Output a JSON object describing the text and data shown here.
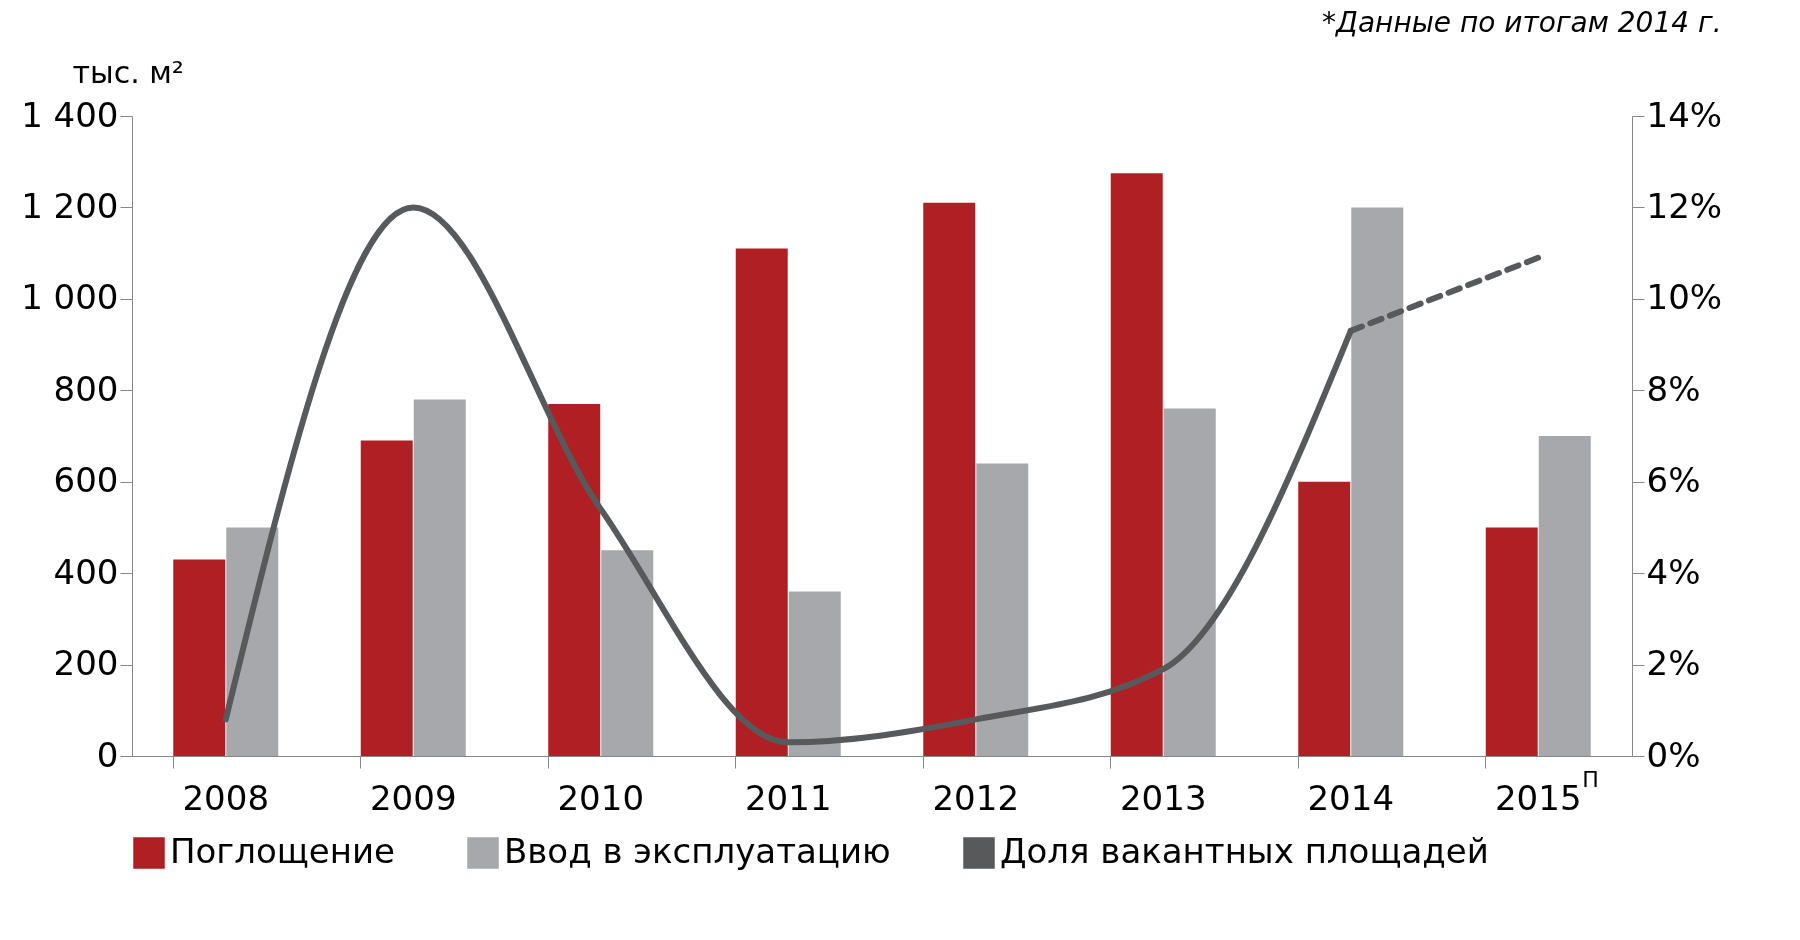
{
  "chart_data": {
    "type": "bar",
    "ylabel": "тыс. м²",
    "annotations": [
      "*Данные по итогам 2014 г."
    ],
    "categories": [
      "2008",
      "2009",
      "2010",
      "2011",
      "2012",
      "2013",
      "2014",
      "2015$^{П}$"
    ],
    "series": [
      {
        "name": "Поглощение",
        "color": "#b01f24",
        "values": [
          430,
          690,
          770,
          1110,
          1210,
          1275,
          600,
          500
        ]
      },
      {
        "name": "Ввод в эксплуатацию",
        "color": "#a7a8ab",
        "values": [
          500,
          780,
          450,
          360,
          640,
          760,
          1200,
          700
        ]
      },
      {
        "name": "Доля вакантных площадей",
        "type": "line",
        "axis": "y2",
        "color": "#58595b",
        "line_style": "solid",
        "values": [
          0.8,
          12,
          5.4,
          0.3,
          0.8,
          1.9,
          9.3,
          null
        ]
      },
      {
        "type": "line",
        "axis": "y2",
        "color": "#58595b",
        "line_style": "dashed",
        "values": [
          null,
          null,
          null,
          null,
          null,
          null,
          9.3,
          10.9
        ]
      }
    ],
    "ylim": [
      0,
      1400
    ],
    "yticks": [
      0,
      200,
      400,
      600,
      800,
      {
        "value": 1000,
        "label": "1 000"
      },
      {
        "value": 1200,
        "label": "1 200"
      },
      {
        "value": 1400,
        "label": "1 400"
      }
    ],
    "y2lim": [
      0,
      14
    ],
    "y2ticks": [
      {
        "value": 0,
        "label": "0%"
      },
      {
        "value": 2,
        "label": "2%"
      },
      {
        "value": 4,
        "label": "4%"
      },
      {
        "value": 6,
        "label": "6%"
      },
      {
        "value": 8,
        "label": "8%"
      },
      {
        "value": 10,
        "label": "10%"
      },
      {
        "value": 12,
        "label": "12%"
      },
      {
        "value": 14,
        "label": "14%"
      }
    ],
    "grid": false,
    "legend": "bottom"
  }
}
